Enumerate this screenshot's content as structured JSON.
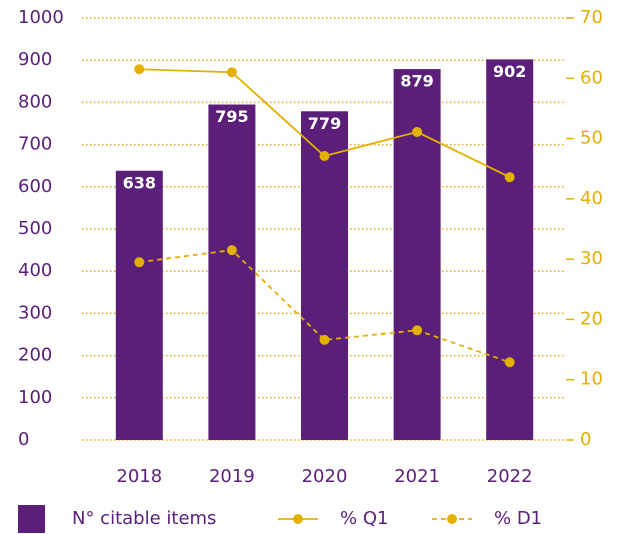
{
  "chart_data": {
    "type": "bar",
    "categories": [
      "2018",
      "2019",
      "2020",
      "2021",
      "2022"
    ],
    "series": [
      {
        "name": "N° citable items",
        "type": "bar",
        "color": "#5b1f7a",
        "values": [
          638,
          795,
          779,
          879,
          902
        ]
      },
      {
        "name": "% Q1",
        "type": "line",
        "axis": "y2",
        "color": "#e3b000",
        "dashed": false,
        "values": [
          61.5,
          61.0,
          47.1,
          51.1,
          43.6
        ]
      },
      {
        "name": "% D1",
        "type": "line",
        "axis": "y2",
        "color": "#e3b000",
        "dashed": true,
        "values": [
          29.5,
          31.5,
          16.6,
          18.2,
          12.9
        ]
      }
    ],
    "ylim": [
      0,
      1000
    ],
    "yticks": [
      0,
      100,
      200,
      300,
      400,
      500,
      600,
      700,
      800,
      900,
      1000
    ],
    "y2lim": [
      0,
      70
    ],
    "y2ticks": [
      0,
      10,
      20,
      30,
      40,
      50,
      60,
      70
    ],
    "grid": true,
    "legend": "bottom"
  }
}
